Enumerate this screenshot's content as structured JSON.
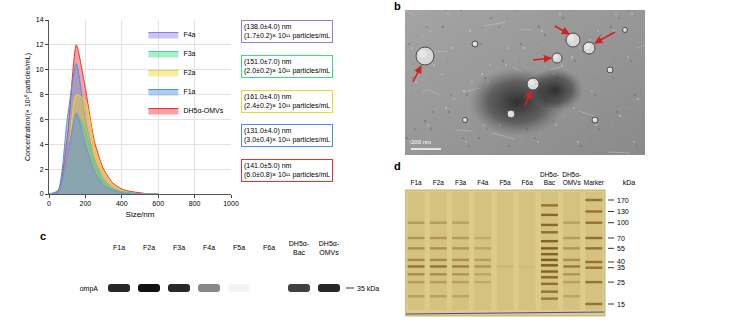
{
  "chart_data": {
    "type": "area",
    "x_label": "Size/nm",
    "y_label": "Concentration/(× 10¹⁰ particles/mL)",
    "x": [
      0,
      50,
      100,
      150,
      200,
      250,
      300,
      350,
      400,
      450,
      500,
      550,
      600
    ],
    "series": [
      {
        "name": "DH5α-OMVs",
        "color": "#f03030",
        "values": [
          0,
          0.2,
          4.5,
          12.0,
          8.5,
          4.2,
          2.0,
          0.9,
          0.4,
          0.2,
          0.1,
          0,
          0
        ]
      },
      {
        "name": "F1a",
        "color": "#4f8fe0",
        "values": [
          0,
          0.3,
          6.0,
          10.5,
          6.0,
          2.8,
          1.2,
          0.5,
          0.2,
          0.1,
          0,
          0,
          0
        ]
      },
      {
        "name": "F2a",
        "color": "#e8d838",
        "values": [
          0,
          0.1,
          2.5,
          8.0,
          7.5,
          3.8,
          1.8,
          0.8,
          0.3,
          0.1,
          0,
          0,
          0
        ]
      },
      {
        "name": "F3a",
        "color": "#3fd98a",
        "values": [
          0,
          0.1,
          2.8,
          6.5,
          5.0,
          2.4,
          1.0,
          0.4,
          0.2,
          0.1,
          0,
          0,
          0
        ]
      },
      {
        "name": "F4a",
        "color": "#8a7fe0",
        "values": [
          0,
          0.1,
          3.0,
          6.5,
          4.0,
          1.8,
          0.7,
          0.3,
          0.1,
          0,
          0,
          0,
          0
        ]
      }
    ],
    "annotations": [
      {
        "series": "F4a",
        "text": [
          "(138.0±4.0) nm",
          "(1.7±0.2)× 10¹¹ particles/mL"
        ]
      },
      {
        "series": "F3a",
        "text": [
          "(151.0±7.0) nm",
          "(2.0±0.2)× 10¹¹ particles/mL"
        ]
      },
      {
        "series": "F2a",
        "text": [
          "(161.0±4.0) nm",
          "(2.4±0.2)× 10¹¹ particles/mL"
        ]
      },
      {
        "series": "F1a",
        "text": [
          "(131.0±4.0) nm",
          "(3.0±0.4)× 10¹¹ particles/mL"
        ]
      },
      {
        "series": "DH5α-OMVs",
        "text": [
          "(141.0±5.0) nm",
          "(6.0±0.8)× 10¹¹ particles/mL"
        ]
      }
    ],
    "xlim": [
      0,
      1000
    ],
    "xticks": [
      0,
      200,
      400,
      600,
      800,
      1000
    ],
    "ylim": [
      0,
      14
    ],
    "yticks": [
      0,
      2,
      4,
      6,
      8,
      10,
      12,
      14
    ],
    "grid": true,
    "legend": "upper right"
  },
  "figure": {
    "panel_labels": [
      "a",
      "b",
      "c",
      "d"
    ],
    "tem": {
      "scale_bar": "200 nm"
    },
    "western_blot": {
      "row_label": "ompA",
      "marker": "35 kDa",
      "lanes": [
        {
          "name": "F1a",
          "intensity": 0.9
        },
        {
          "name": "F2a",
          "intensity": 1.0
        },
        {
          "name": "F3a",
          "intensity": 0.9
        },
        {
          "name": "F4a",
          "intensity": 0.5
        },
        {
          "name": "F5a",
          "intensity": 0.05
        },
        {
          "name": "F6a",
          "intensity": 0
        },
        {
          "name": "DH5α-Bac",
          "intensity": 0.8
        },
        {
          "name": "DH5α-OMVs",
          "intensity": 0.9
        }
      ]
    },
    "gel": {
      "unit": "kDa",
      "ticks": [
        170,
        130,
        100,
        70,
        55,
        40,
        35,
        25,
        15
      ],
      "lanes": [
        {
          "name": "F1a",
          "bands": [
            {
              "kDa": 100,
              "i": 0.35
            },
            {
              "kDa": 70,
              "i": 0.4
            },
            {
              "kDa": 55,
              "i": 0.45
            },
            {
              "kDa": 42,
              "i": 0.5
            },
            {
              "kDa": 36,
              "i": 0.7
            },
            {
              "kDa": 30,
              "i": 0.45
            },
            {
              "kDa": 25,
              "i": 0.35
            },
            {
              "kDa": 18,
              "i": 0.3
            }
          ]
        },
        {
          "name": "F2a",
          "bands": [
            {
              "kDa": 100,
              "i": 0.35
            },
            {
              "kDa": 70,
              "i": 0.4
            },
            {
              "kDa": 55,
              "i": 0.45
            },
            {
              "kDa": 42,
              "i": 0.5
            },
            {
              "kDa": 36,
              "i": 0.7
            },
            {
              "kDa": 30,
              "i": 0.45
            },
            {
              "kDa": 25,
              "i": 0.35
            },
            {
              "kDa": 18,
              "i": 0.3
            }
          ]
        },
        {
          "name": "F3a",
          "bands": [
            {
              "kDa": 100,
              "i": 0.3
            },
            {
              "kDa": 70,
              "i": 0.35
            },
            {
              "kDa": 55,
              "i": 0.4
            },
            {
              "kDa": 42,
              "i": 0.45
            },
            {
              "kDa": 36,
              "i": 0.6
            },
            {
              "kDa": 30,
              "i": 0.4
            },
            {
              "kDa": 25,
              "i": 0.3
            },
            {
              "kDa": 18,
              "i": 0.25
            }
          ]
        },
        {
          "name": "F4a",
          "bands": [
            {
              "kDa": 70,
              "i": 0.2
            },
            {
              "kDa": 55,
              "i": 0.25
            },
            {
              "kDa": 42,
              "i": 0.3
            },
            {
              "kDa": 36,
              "i": 0.4
            },
            {
              "kDa": 30,
              "i": 0.25
            },
            {
              "kDa": 25,
              "i": 0.2
            }
          ]
        },
        {
          "name": "F5a",
          "bands": [
            {
              "kDa": 36,
              "i": 0.1
            }
          ]
        },
        {
          "name": "F6a",
          "bands": [
            {
              "kDa": 36,
              "i": 0.05
            }
          ]
        },
        {
          "name": "DH5α-Bac",
          "bands": [
            {
              "kDa": 150,
              "i": 0.7
            },
            {
              "kDa": 120,
              "i": 0.8
            },
            {
              "kDa": 95,
              "i": 0.8
            },
            {
              "kDa": 80,
              "i": 0.75
            },
            {
              "kDa": 65,
              "i": 0.85
            },
            {
              "kDa": 55,
              "i": 0.9
            },
            {
              "kDa": 48,
              "i": 0.85
            },
            {
              "kDa": 42,
              "i": 0.9
            },
            {
              "kDa": 37,
              "i": 0.9
            },
            {
              "kDa": 32,
              "i": 0.85
            },
            {
              "kDa": 28,
              "i": 0.8
            },
            {
              "kDa": 24,
              "i": 0.75
            },
            {
              "kDa": 20,
              "i": 0.7
            },
            {
              "kDa": 17,
              "i": 0.65
            }
          ]
        },
        {
          "name": "DH5α-OMVs",
          "bands": [
            {
              "kDa": 100,
              "i": 0.3
            },
            {
              "kDa": 70,
              "i": 0.35
            },
            {
              "kDa": 55,
              "i": 0.4
            },
            {
              "kDa": 42,
              "i": 0.45
            },
            {
              "kDa": 36,
              "i": 0.65
            },
            {
              "kDa": 30,
              "i": 0.4
            },
            {
              "kDa": 25,
              "i": 0.3
            },
            {
              "kDa": 18,
              "i": 0.25
            }
          ]
        },
        {
          "name": "Marker",
          "bands": [
            {
              "kDa": 170,
              "i": 0.7
            },
            {
              "kDa": 130,
              "i": 0.7
            },
            {
              "kDa": 100,
              "i": 0.7
            },
            {
              "kDa": 70,
              "i": 0.75
            },
            {
              "kDa": 55,
              "i": 0.7
            },
            {
              "kDa": 40,
              "i": 0.7
            },
            {
              "kDa": 35,
              "i": 0.7
            },
            {
              "kDa": 25,
              "i": 0.7
            },
            {
              "kDa": 15,
              "i": 0.7
            }
          ]
        }
      ]
    }
  }
}
